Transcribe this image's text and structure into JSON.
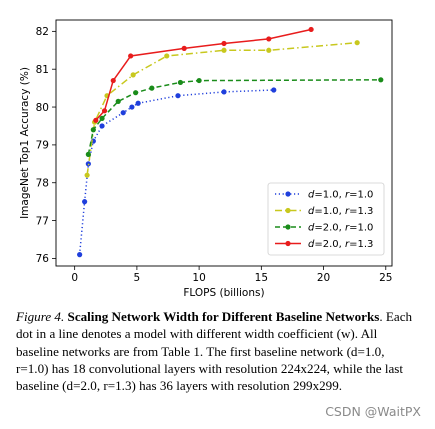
{
  "chart_data": {
    "type": "line",
    "title": "",
    "xlabel": "FLOPS (billions)",
    "ylabel": "ImageNet Top1 Accuracy (%)",
    "xlim": [
      -1.5,
      25.5
    ],
    "ylim": [
      75.8,
      82.3
    ],
    "xticks": [
      0,
      5,
      10,
      15,
      20,
      25
    ],
    "yticks": [
      76,
      77,
      78,
      79,
      80,
      81,
      82
    ],
    "grid": false,
    "legend_position": "lower-right",
    "series": [
      {
        "name": "d=1.0, r=1.0",
        "label_parts": [
          "d",
          "=1.0, ",
          "r",
          "=1.0"
        ],
        "color": "#1f3fdc",
        "style": "dotted",
        "x": [
          0.4,
          0.8,
          1.1,
          1.5,
          2.2,
          3.9,
          4.6,
          5.1,
          8.3,
          12.0,
          16.0
        ],
        "y": [
          76.1,
          77.5,
          78.5,
          79.1,
          79.5,
          79.85,
          80.0,
          80.1,
          80.3,
          80.4,
          80.45
        ]
      },
      {
        "name": "d=1.0, r=1.3",
        "label_parts": [
          "d",
          "=1.0, ",
          "r",
          "=1.3"
        ],
        "color": "#c8c81e",
        "style": "dashdot",
        "x": [
          1.0,
          1.6,
          2.6,
          4.7,
          7.4,
          12.0,
          15.6,
          22.7
        ],
        "y": [
          78.2,
          79.6,
          80.3,
          80.85,
          81.35,
          81.5,
          81.5,
          81.7
        ]
      },
      {
        "name": "d=2.0, r=1.0",
        "label_parts": [
          "d",
          "=2.0, ",
          "r",
          "=1.0"
        ],
        "color": "#1a8c1a",
        "style": "dashed",
        "x": [
          1.1,
          1.5,
          2.2,
          3.5,
          4.9,
          6.2,
          8.5,
          10.0,
          24.6
        ],
        "y": [
          78.75,
          79.4,
          79.7,
          80.15,
          80.38,
          80.5,
          80.65,
          80.7,
          80.72
        ]
      },
      {
        "name": "d=2.0, r=1.3",
        "label_parts": [
          "d",
          "=2.0, ",
          "r",
          "=1.3"
        ],
        "color": "#e81c1c",
        "style": "solid",
        "x": [
          1.7,
          2.4,
          3.1,
          4.5,
          8.8,
          12.0,
          15.6,
          19.0
        ],
        "y": [
          79.65,
          79.9,
          80.7,
          81.35,
          81.55,
          81.68,
          81.8,
          82.05
        ]
      }
    ]
  },
  "caption": {
    "figure_label": "Figure 4.",
    "title": "Scaling Network Width for Different Baseline Networks",
    "body": ". Each dot in a line denotes a model with different width coefficient (w). All baseline networks are from Table 1. The first baseline network (d=1.0, r=1.0) has 18 convolutional layers with resolution 224x224, while the last baseline (d=2.0, r=1.3) has 36 layers with resolution 299x299."
  },
  "watermark": "CSDN @WaitPX"
}
